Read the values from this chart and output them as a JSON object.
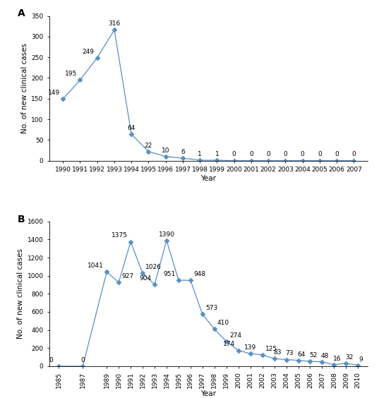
{
  "panel_A": {
    "years": [
      1990,
      1991,
      1992,
      1993,
      1994,
      1995,
      1996,
      1997,
      1998,
      1999,
      2000,
      2001,
      2002,
      2003,
      2004,
      2005,
      2006,
      2007
    ],
    "values": [
      149,
      195,
      249,
      316,
      64,
      22,
      10,
      6,
      1,
      1,
      0,
      0,
      0,
      0,
      0,
      0,
      0,
      0
    ],
    "ylim": [
      0,
      350
    ],
    "yticks": [
      0,
      50,
      100,
      150,
      200,
      250,
      300,
      350
    ],
    "ylabel": "No. of new clinical cases",
    "xlabel": "Year",
    "label": "A"
  },
  "panel_B": {
    "years": [
      1985,
      1987,
      1989,
      1990,
      1991,
      1992,
      1993,
      1994,
      1995,
      1996,
      1997,
      1998,
      1999,
      2000,
      2001,
      2002,
      2003,
      2004,
      2005,
      2006,
      2007,
      2008,
      2009,
      2010
    ],
    "values": [
      0,
      0,
      1041,
      927,
      1375,
      1026,
      904,
      1390,
      951,
      948,
      573,
      410,
      274,
      174,
      139,
      125,
      83,
      73,
      64,
      52,
      48,
      16,
      32,
      9
    ],
    "ylim": [
      0,
      1600
    ],
    "yticks": [
      0,
      200,
      400,
      600,
      800,
      1000,
      1200,
      1400,
      1600
    ],
    "ylabel": "No. of new clinical cases",
    "xlabel": "Year",
    "label": "B"
  },
  "line_color": "#5b8ec4",
  "marker_color": "#5b8ec4",
  "marker": "D",
  "marker_size": 3.5,
  "tick_font_size": 6.5,
  "annot_font_size": 6.5,
  "axis_label_font_size": 7.5,
  "panel_label_font_size": 10,
  "background_color": "#ffffff"
}
